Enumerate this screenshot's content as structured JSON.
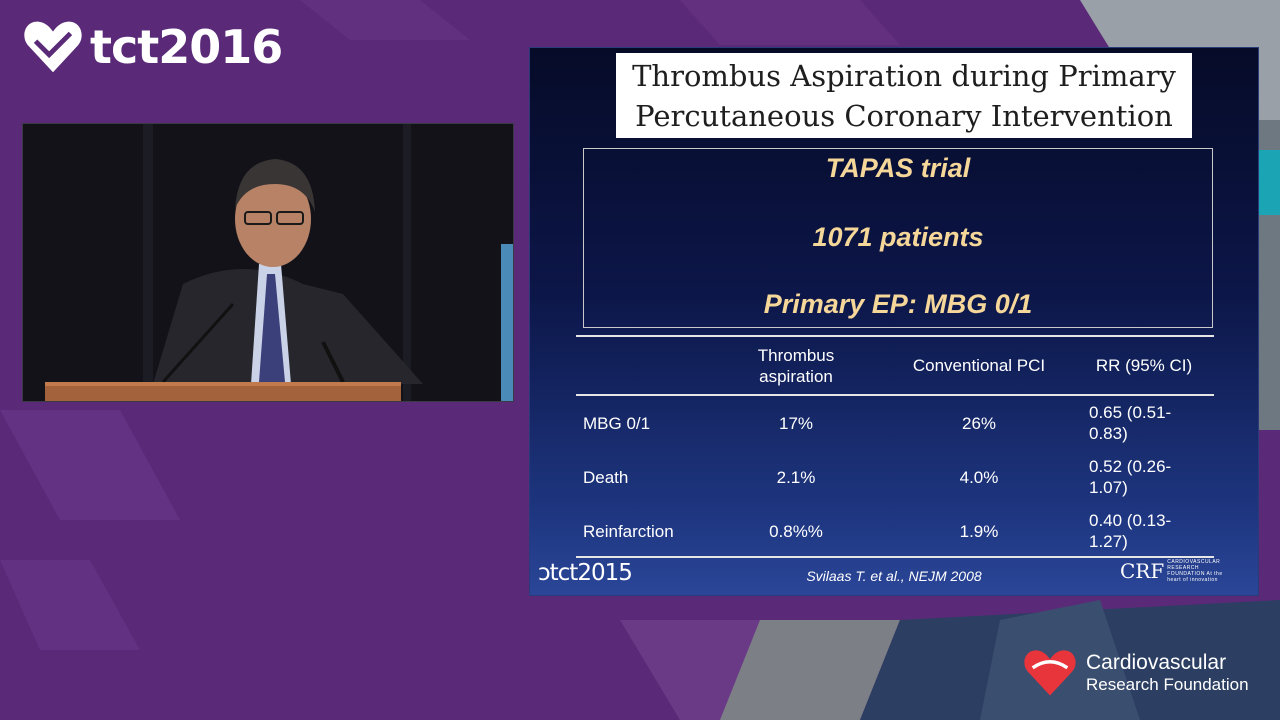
{
  "event_logo": {
    "text": "tct2016",
    "icon": "heart-icon"
  },
  "video": {
    "description_icon": "speaker-video"
  },
  "slide": {
    "title_line1": "Thrombus Aspiration during Primary",
    "title_line2": "Percutaneous Coronary Intervention",
    "trial_name": "TAPAS trial",
    "patients": "1071 patients",
    "endpoint": "Primary EP: MBG 0/1",
    "table": {
      "headers": [
        "",
        "Thrombus aspiration",
        "Conventional PCI",
        "RR (95% CI)"
      ],
      "rows": [
        [
          "MBG 0/1",
          "17%",
          "26%",
          "0.65 (0.51-0.83)"
        ],
        [
          "Death",
          "2.1%",
          "4.0%",
          "0.52 (0.26-1.07)"
        ],
        [
          "Reinfarction",
          "0.8%%",
          "1.9%",
          "0.40 (0.13-1.27)"
        ]
      ]
    },
    "footer_left_logo": "tct2015",
    "citation": "Svilaas T. et al., NEJM 2008",
    "footer_right_logo": "CRF",
    "footer_right_sub": "CARDIOVASCULAR RESEARCH FOUNDATION At the heart of innovation"
  },
  "sponsor": {
    "line1": "Cardiovascular",
    "line2": "Research Foundation"
  },
  "colors": {
    "background": "#5a2a78",
    "accent_text": "#f6d79a",
    "heart_red": "#e8343b"
  }
}
